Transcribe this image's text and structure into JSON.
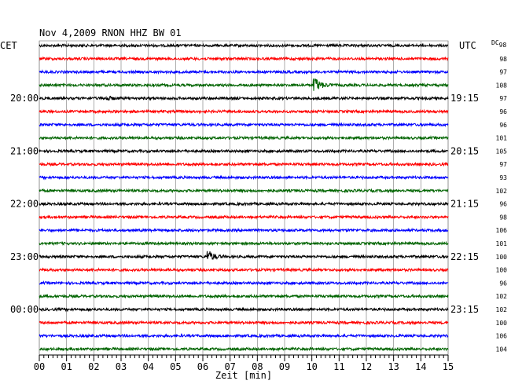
{
  "chart_data": {
    "type": "line",
    "title": "Nov 4,2009    RNON HHZ BW 01",
    "left_label": "CET",
    "right_label": "UTC",
    "dc_label": "DC",
    "dc_label_sub": "98",
    "xlabel": "Zeit [min]",
    "x_ticks": [
      "00",
      "01",
      "02",
      "03",
      "04",
      "05",
      "06",
      "07",
      "08",
      "09",
      "10",
      "11",
      "12",
      "13",
      "14",
      "15"
    ],
    "xlim": [
      0,
      15
    ],
    "trace_colors": [
      "#000000",
      "#ff0000",
      "#0000ff",
      "#006400"
    ],
    "traces": [
      {
        "left": "",
        "right": "",
        "dc": "",
        "events": []
      },
      {
        "left": "",
        "right": "",
        "dc": "98",
        "events": []
      },
      {
        "left": "",
        "right": "",
        "dc": "97",
        "events": []
      },
      {
        "left": "",
        "right": "",
        "dc": "108",
        "events": [
          {
            "minute": 10.1,
            "amplitude": 10
          }
        ]
      },
      {
        "left": "20:00",
        "right": "19:15",
        "dc": "97",
        "events": [
          {
            "minute": 2.5,
            "amplitude": 2
          }
        ]
      },
      {
        "left": "",
        "right": "",
        "dc": "96",
        "events": []
      },
      {
        "left": "",
        "right": "",
        "dc": "96",
        "events": []
      },
      {
        "left": "",
        "right": "",
        "dc": "101",
        "events": []
      },
      {
        "left": "21:00",
        "right": "20:15",
        "dc": "105",
        "events": []
      },
      {
        "left": "",
        "right": "",
        "dc": "97",
        "events": []
      },
      {
        "left": "",
        "right": "",
        "dc": "93",
        "events": []
      },
      {
        "left": "",
        "right": "",
        "dc": "102",
        "events": []
      },
      {
        "left": "22:00",
        "right": "21:15",
        "dc": "96",
        "events": []
      },
      {
        "left": "",
        "right": "",
        "dc": "98",
        "events": []
      },
      {
        "left": "",
        "right": "",
        "dc": "106",
        "events": []
      },
      {
        "left": "",
        "right": "",
        "dc": "101",
        "events": []
      },
      {
        "left": "23:00",
        "right": "22:15",
        "dc": "100",
        "events": [
          {
            "minute": 6.2,
            "amplitude": 7
          }
        ]
      },
      {
        "left": "",
        "right": "",
        "dc": "100",
        "events": []
      },
      {
        "left": "",
        "right": "",
        "dc": "96",
        "events": []
      },
      {
        "left": "",
        "right": "",
        "dc": "102",
        "events": []
      },
      {
        "left": "00:00",
        "right": "23:15",
        "dc": "102",
        "events": []
      },
      {
        "left": "",
        "right": "",
        "dc": "100",
        "events": []
      },
      {
        "left": "",
        "right": "",
        "dc": "106",
        "events": []
      },
      {
        "left": "",
        "right": "",
        "dc": "104",
        "events": []
      }
    ]
  }
}
